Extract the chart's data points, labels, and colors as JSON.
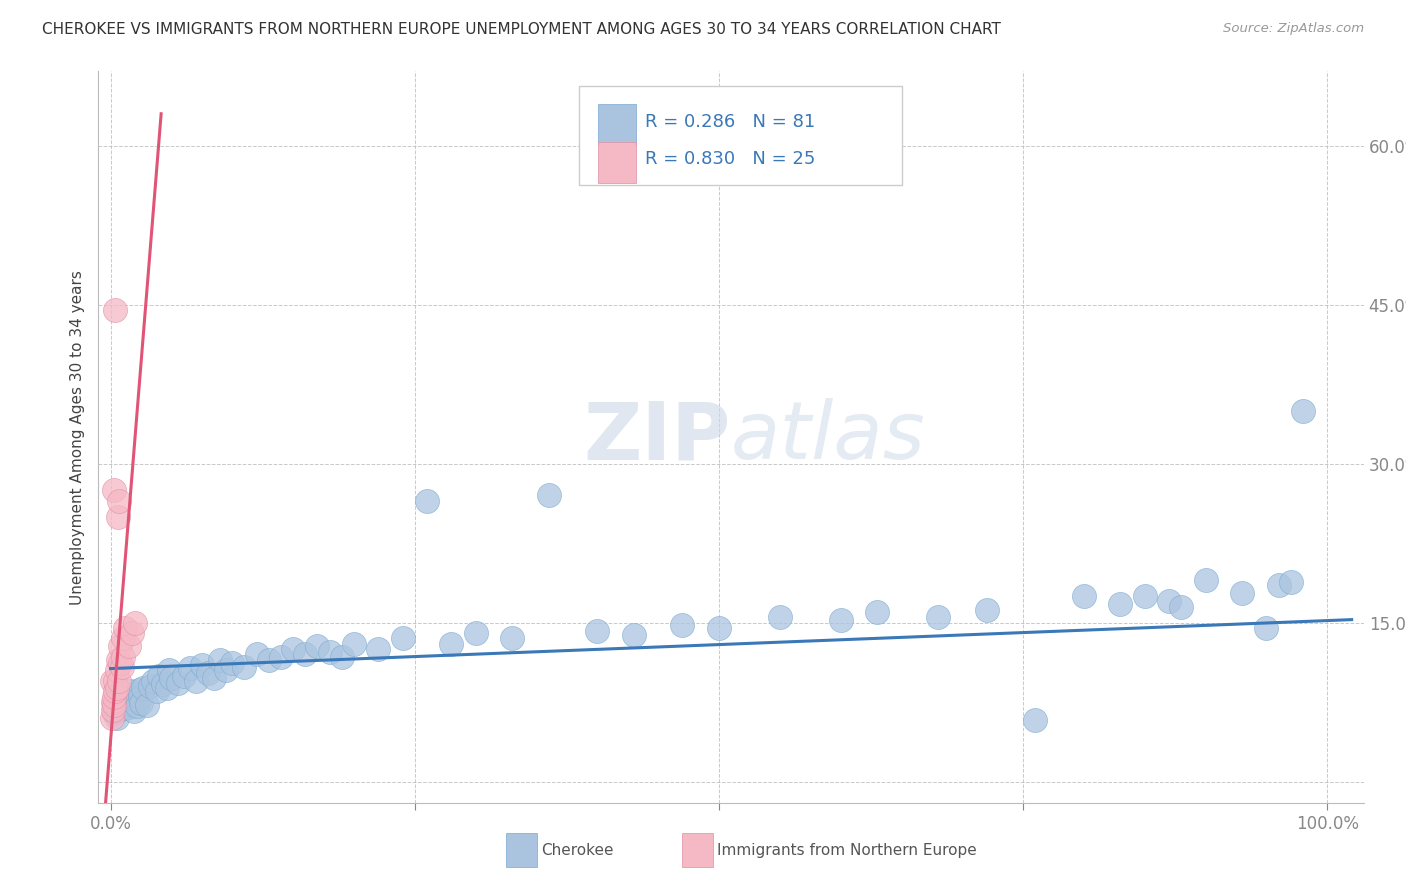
{
  "title": "CHEROKEE VS IMMIGRANTS FROM NORTHERN EUROPE UNEMPLOYMENT AMONG AGES 30 TO 34 YEARS CORRELATION CHART",
  "source": "Source: ZipAtlas.com",
  "ylabel": "Unemployment Among Ages 30 to 34 years",
  "xlim": [
    0.0,
    1.0
  ],
  "ylim": [
    0.0,
    0.65
  ],
  "xticks": [
    0.0,
    0.25,
    0.5,
    0.75,
    1.0
  ],
  "xticklabels": [
    "0.0%",
    "",
    "",
    "",
    "100.0%"
  ],
  "ytick_vals": [
    0.0,
    0.15,
    0.3,
    0.45,
    0.6
  ],
  "yticklabels_right": [
    "",
    "15.0%",
    "30.0%",
    "45.0%",
    "60.0%"
  ],
  "watermark_zip": "ZIP",
  "watermark_atlas": "atlas",
  "cherokee_color": "#aac4e0",
  "cherokee_edge_color": "#7aaad0",
  "cherokee_line_color": "#3b78b8",
  "immigrant_color": "#f5b8c5",
  "immigrant_edge_color": "#e090a5",
  "immigrant_line_color": "#e05575",
  "cherokee_R": 0.286,
  "cherokee_N": 81,
  "immigrant_R": 0.83,
  "immigrant_N": 25,
  "legend_R_color": "#3b78b8",
  "background_color": "#ffffff",
  "grid_color": "#bbbbbb",
  "cherokee_x": [
    0.003,
    0.004,
    0.005,
    0.006,
    0.007,
    0.008,
    0.009,
    0.01,
    0.011,
    0.012,
    0.013,
    0.014,
    0.015,
    0.016,
    0.017,
    0.018,
    0.019,
    0.02,
    0.021,
    0.022,
    0.023,
    0.024,
    0.025,
    0.027,
    0.03,
    0.032,
    0.035,
    0.038,
    0.04,
    0.043,
    0.046,
    0.048,
    0.05,
    0.055,
    0.06,
    0.065,
    0.07,
    0.075,
    0.08,
    0.085,
    0.09,
    0.095,
    0.1,
    0.11,
    0.12,
    0.13,
    0.14,
    0.15,
    0.16,
    0.17,
    0.18,
    0.19,
    0.2,
    0.22,
    0.24,
    0.26,
    0.28,
    0.3,
    0.33,
    0.36,
    0.4,
    0.43,
    0.47,
    0.5,
    0.55,
    0.6,
    0.63,
    0.68,
    0.72,
    0.76,
    0.8,
    0.83,
    0.85,
    0.87,
    0.88,
    0.9,
    0.93,
    0.95,
    0.96,
    0.97,
    0.98
  ],
  "cherokee_y": [
    0.065,
    0.072,
    0.06,
    0.075,
    0.068,
    0.08,
    0.071,
    0.078,
    0.069,
    0.074,
    0.082,
    0.076,
    0.07,
    0.085,
    0.073,
    0.079,
    0.067,
    0.083,
    0.077,
    0.071,
    0.086,
    0.08,
    0.074,
    0.088,
    0.072,
    0.09,
    0.095,
    0.085,
    0.1,
    0.092,
    0.088,
    0.105,
    0.098,
    0.093,
    0.1,
    0.107,
    0.095,
    0.11,
    0.102,
    0.098,
    0.115,
    0.105,
    0.112,
    0.108,
    0.12,
    0.115,
    0.118,
    0.125,
    0.12,
    0.128,
    0.122,
    0.118,
    0.13,
    0.125,
    0.135,
    0.265,
    0.13,
    0.14,
    0.135,
    0.27,
    0.142,
    0.138,
    0.148,
    0.145,
    0.155,
    0.152,
    0.16,
    0.155,
    0.162,
    0.058,
    0.175,
    0.168,
    0.175,
    0.17,
    0.165,
    0.19,
    0.178,
    0.145,
    0.185,
    0.188,
    0.35
  ],
  "immigrant_x": [
    0.001,
    0.001,
    0.002,
    0.002,
    0.003,
    0.003,
    0.003,
    0.004,
    0.004,
    0.004,
    0.005,
    0.005,
    0.006,
    0.006,
    0.007,
    0.007,
    0.008,
    0.008,
    0.009,
    0.01,
    0.01,
    0.012,
    0.015,
    0.018,
    0.02
  ],
  "immigrant_y": [
    0.06,
    0.095,
    0.068,
    0.075,
    0.072,
    0.08,
    0.275,
    0.085,
    0.095,
    0.445,
    0.088,
    0.105,
    0.25,
    0.115,
    0.095,
    0.265,
    0.112,
    0.128,
    0.108,
    0.118,
    0.135,
    0.145,
    0.128,
    0.14,
    0.15
  ]
}
